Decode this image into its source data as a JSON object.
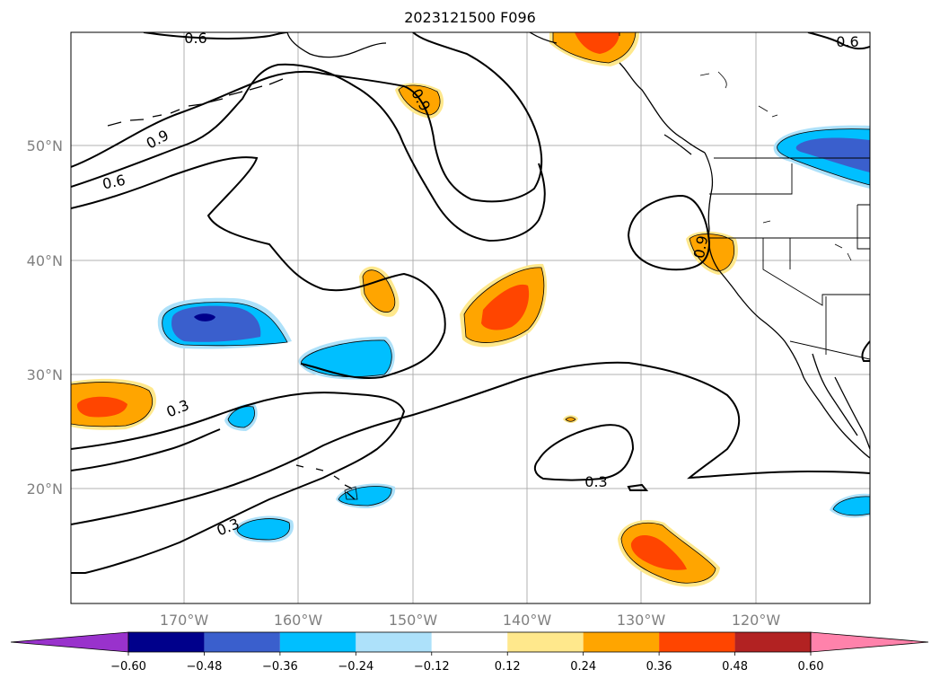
{
  "title": "2023121500 F096",
  "map": {
    "lat_labels": [
      "50°N",
      "40°N",
      "30°N",
      "20°N"
    ],
    "lon_labels": [
      "170°W",
      "160°W",
      "150°W",
      "140°W",
      "130°W",
      "120°W"
    ]
  },
  "contour_labels": [
    {
      "text": "0.6"
    },
    {
      "text": "0.6"
    },
    {
      "text": "0.9"
    },
    {
      "text": "0.6"
    },
    {
      "text": "0.9"
    },
    {
      "text": "0.9"
    },
    {
      "text": "0.3"
    },
    {
      "text": "0.3"
    },
    {
      "text": "0.3"
    }
  ],
  "colorbar": {
    "labels": [
      "−0.60",
      "−0.48",
      "−0.36",
      "−0.24",
      "−0.12",
      "0.12",
      "0.24",
      "0.36",
      "0.48",
      "0.60"
    ],
    "colors": [
      "#9932CC",
      "#00008B",
      "#3A5FCD",
      "#00BFFF",
      "#ADE1FA",
      "#FFFFFF",
      "#FFE88C",
      "#FFA500",
      "#FF4500",
      "#B22222",
      "#FF82AB"
    ]
  }
}
